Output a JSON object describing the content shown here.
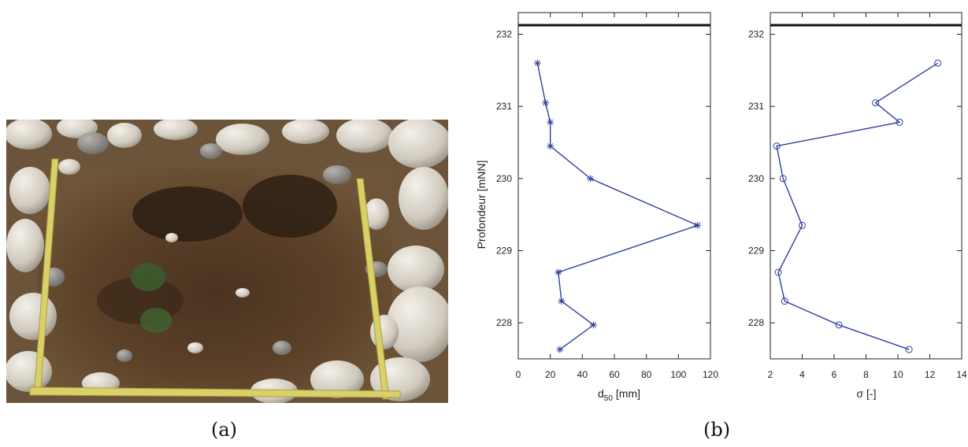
{
  "captions": {
    "a": "(a)",
    "b": "(b)"
  },
  "chart_data": [
    {
      "type": "line",
      "ylabel": "Profondeur [mNN]",
      "xlabel": "d",
      "xlabel_sub": "50",
      "xlabel_unit": "[mm]",
      "xlim": [
        0,
        120
      ],
      "ylim": [
        227.5,
        232.3
      ],
      "xticks": [
        0,
        20,
        40,
        60,
        80,
        100,
        120
      ],
      "yticks": [
        228,
        229,
        230,
        231,
        232
      ],
      "marker": "asterisk",
      "color": "#2f3f9e",
      "x": [
        12,
        17,
        20,
        20,
        45,
        112,
        25,
        27,
        47,
        26
      ],
      "y": [
        231.6,
        231.05,
        230.78,
        230.45,
        230.0,
        229.35,
        228.7,
        228.3,
        227.97,
        227.63
      ]
    },
    {
      "type": "line",
      "ylabel": "",
      "xlabel": "σ [-]",
      "xlim": [
        2,
        14
      ],
      "ylim": [
        227.5,
        232.3
      ],
      "xticks": [
        2,
        4,
        6,
        8,
        10,
        12,
        14
      ],
      "yticks": [
        228,
        229,
        230,
        231,
        232
      ],
      "marker": "circle",
      "color": "#2f3f9e",
      "x": [
        12.5,
        8.6,
        10.1,
        2.4,
        2.8,
        4.0,
        2.5,
        2.9,
        6.3,
        10.7
      ],
      "y": [
        231.6,
        231.05,
        230.78,
        230.45,
        230.0,
        229.35,
        228.7,
        228.3,
        227.97,
        227.63
      ]
    }
  ]
}
